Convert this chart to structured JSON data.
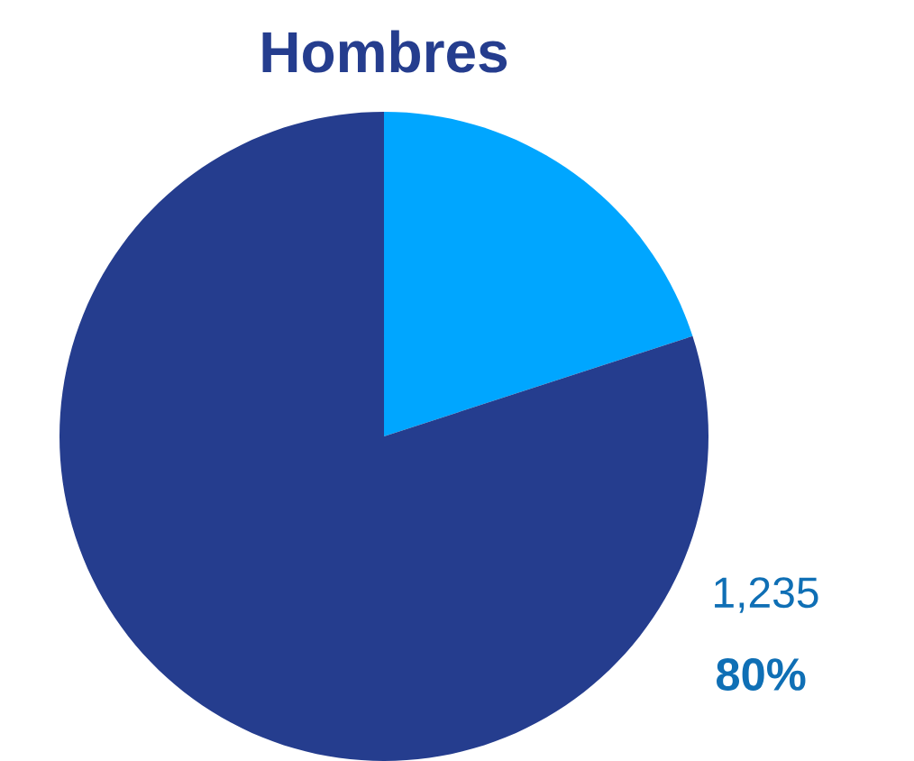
{
  "chart_data": {
    "type": "pie",
    "title": "Hombres",
    "categories": [
      null,
      null
    ],
    "values": [
      20,
      80
    ],
    "colors": [
      "#00a6ff",
      "#253d8e"
    ],
    "value_labels": [
      null,
      "80%"
    ],
    "annotations": [
      "1,235"
    ]
  }
}
